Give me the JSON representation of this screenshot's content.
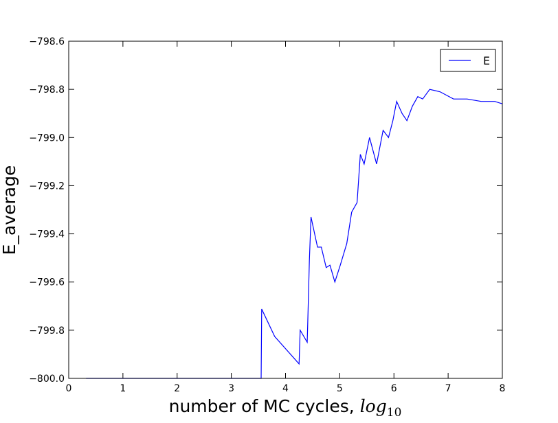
{
  "chart_data": {
    "type": "line",
    "xlabel": "number of MC cycles, ",
    "xlabel_math": "log",
    "xlabel_sub": "10",
    "ylabel": "E_average",
    "x": [
      0.32,
      3.55,
      3.56,
      3.8,
      4.25,
      4.27,
      4.4,
      4.41,
      4.44,
      4.47,
      4.59,
      4.66,
      4.75,
      4.82,
      4.91,
      5.01,
      5.13,
      5.22,
      5.32,
      5.38,
      5.45,
      5.55,
      5.68,
      5.8,
      5.9,
      5.98,
      6.05,
      6.15,
      6.24,
      6.34,
      6.44,
      6.53,
      6.66,
      6.85,
      7.1,
      7.35,
      7.61,
      7.86,
      8.0
    ],
    "series": [
      {
        "name": "E",
        "color": "#0000ff",
        "values": [
          -800,
          -800,
          -799.712,
          -799.826,
          -799.94,
          -799.8,
          -799.85,
          -799.77,
          -799.51,
          -799.33,
          -799.455,
          -799.455,
          -799.54,
          -799.53,
          -799.6,
          -799.53,
          -799.44,
          -799.31,
          -799.27,
          -799.07,
          -799.11,
          -799.0,
          -799.11,
          -798.97,
          -799.0,
          -798.93,
          -798.85,
          -798.9,
          -798.93,
          -798.87,
          -798.83,
          -798.84,
          -798.8,
          -798.81,
          -798.84,
          -798.84,
          -798.85,
          -798.85,
          -798.86
        ]
      }
    ],
    "xlim": [
      0,
      8
    ],
    "xticks": [
      0,
      1,
      2,
      3,
      4,
      5,
      6,
      7,
      8
    ],
    "ylim": [
      -800,
      -798.6
    ],
    "yticks": [
      {
        "value": -800,
        "label": "−800.0"
      },
      {
        "value": -799.8,
        "label": "−799.8"
      },
      {
        "value": -799.6,
        "label": "−799.6"
      },
      {
        "value": -799.4,
        "label": "−799.4"
      },
      {
        "value": -799.2,
        "label": "−799.2"
      },
      {
        "value": -799.0,
        "label": "−799.0"
      },
      {
        "value": -798.8,
        "label": "−798.8"
      },
      {
        "value": -798.6,
        "label": "−798.6"
      }
    ],
    "legend": "upper right",
    "grid": false
  }
}
